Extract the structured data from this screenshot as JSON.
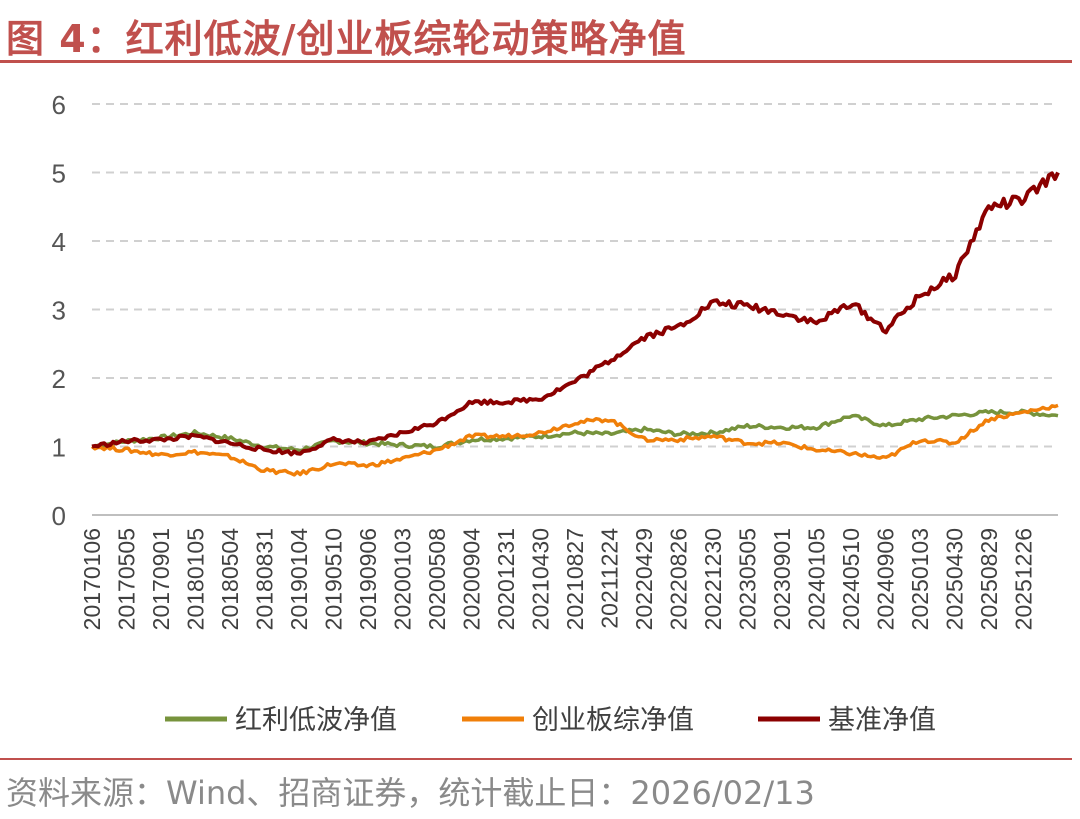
{
  "figure": {
    "title": "图 4：红利低波/创业板综轮动策略净值",
    "source": "资料来源：Wind、招商证券，统计截止日：2026/02/13"
  },
  "chart_data": {
    "type": "line",
    "title": "",
    "xlabel": "",
    "ylabel": "",
    "ylim": [
      0,
      6
    ],
    "yticks": [
      "0",
      "1",
      "2",
      "3",
      "4",
      "5",
      "6"
    ],
    "grid": "horizontal dashed",
    "legend_position": "bottom",
    "x": [
      "20170106",
      "20170505",
      "20170901",
      "20180105",
      "20180504",
      "20180831",
      "20190104",
      "20190510",
      "20190906",
      "20200103",
      "20200508",
      "20200904",
      "20201231",
      "20210430",
      "20210827",
      "20211224",
      "20220429",
      "20220826",
      "20221230",
      "20230505",
      "20230901",
      "20240105",
      "20240510",
      "20240906",
      "20250103",
      "20250430",
      "20250829",
      "20251226",
      "20260213"
    ],
    "x_tick_labels": [
      "20170106",
      "20170505",
      "20170901",
      "20180105",
      "20180504",
      "20180831",
      "20190104",
      "20190510",
      "20190906",
      "20200103",
      "20200508",
      "20200904",
      "20201231",
      "20210430",
      "20210827",
      "20211224",
      "20220429",
      "20220826",
      "20221230",
      "20230505",
      "20230901",
      "20240105",
      "20240510",
      "20240906",
      "20250103",
      "20250430",
      "20250829",
      "20251226"
    ],
    "series": [
      {
        "name": "红利低波净值",
        "color": "#77933c",
        "values": [
          1.0,
          1.08,
          1.13,
          1.2,
          1.12,
          1.0,
          0.95,
          1.08,
          1.05,
          1.02,
          1.0,
          1.1,
          1.12,
          1.15,
          1.2,
          1.18,
          1.25,
          1.18,
          1.2,
          1.3,
          1.28,
          1.28,
          1.45,
          1.3,
          1.4,
          1.45,
          1.5,
          1.5,
          1.45
        ]
      },
      {
        "name": "创业板综净值",
        "color": "#f07f09",
        "values": [
          1.0,
          0.95,
          0.88,
          0.92,
          0.85,
          0.65,
          0.6,
          0.75,
          0.72,
          0.82,
          0.95,
          1.15,
          1.15,
          1.2,
          1.35,
          1.4,
          1.1,
          1.1,
          1.15,
          1.05,
          1.05,
          0.95,
          0.9,
          0.82,
          1.1,
          1.05,
          1.4,
          1.5,
          1.6
        ]
      },
      {
        "name": "基准净值",
        "color": "#8b0000",
        "values": [
          1.0,
          1.08,
          1.1,
          1.15,
          1.05,
          0.95,
          0.9,
          1.1,
          1.05,
          1.2,
          1.35,
          1.65,
          1.65,
          1.7,
          1.95,
          2.25,
          2.6,
          2.75,
          3.1,
          3.05,
          2.95,
          2.8,
          3.1,
          2.7,
          3.2,
          3.5,
          4.5,
          4.6,
          5.0
        ]
      }
    ]
  }
}
